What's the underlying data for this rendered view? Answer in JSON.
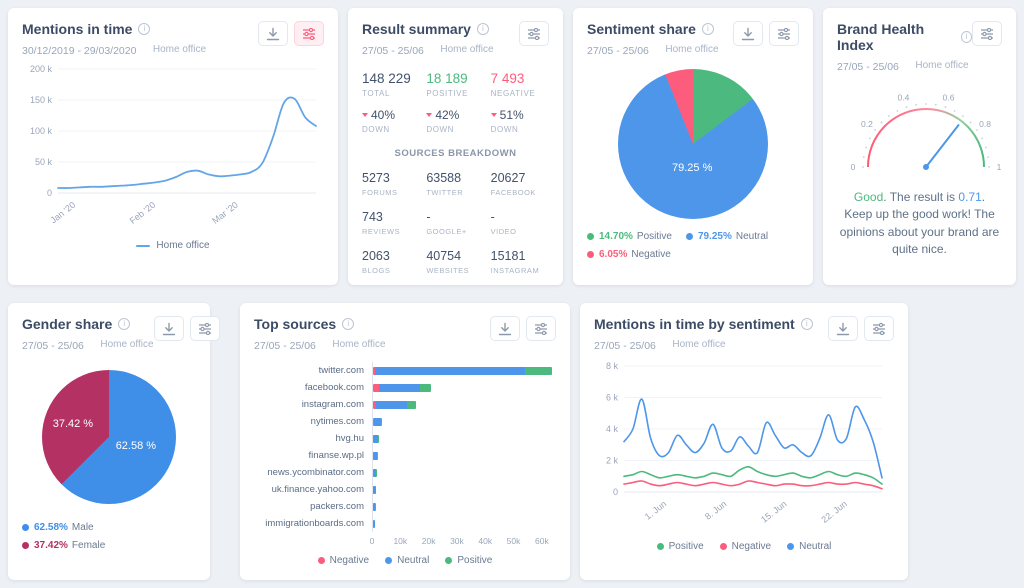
{
  "colors": {
    "positive": "#4cb97f",
    "negative": "#fd5d7c",
    "neutral": "#4d96e9",
    "male": "#3f8ee8",
    "female": "#b43163",
    "line": "#64a5e8",
    "dark": "#42526b"
  },
  "cards": {
    "mentions": {
      "title": "Mentions in time",
      "date_range": "30/12/2019 - 29/03/2020",
      "project": "Home office",
      "legend_label": "Home office",
      "chart_data": {
        "type": "line",
        "ymax": 200,
        "y_ticks": [
          "200 k",
          "150 k",
          "100 k",
          "50 k",
          "0"
        ],
        "x_ticks": [
          {
            "pos": 0.07,
            "label": "Jan '20"
          },
          {
            "pos": 0.38,
            "label": "Feb '20"
          },
          {
            "pos": 0.7,
            "label": "Mar '20"
          }
        ],
        "series": [
          {
            "name": "Home office",
            "color": "#64a5e8",
            "values": [
              8,
              8,
              9,
              10,
              10,
              11,
              12,
              13,
              15,
              17,
              20,
              26,
              34,
              36,
              30,
              27,
              28,
              30,
              34,
              48,
              90,
              145,
              152,
              122,
              108
            ]
          }
        ]
      }
    },
    "summary": {
      "title": "Result summary",
      "date_range": "27/05 - 25/06",
      "project": "Home office",
      "stats": [
        {
          "value": "148 229",
          "label": "TOTAL"
        },
        {
          "value": "18 189",
          "label": "POSITIVE"
        },
        {
          "value": "7 493",
          "label": "NEGATIVE"
        }
      ],
      "trends": [
        {
          "value": "40%",
          "label": "DOWN"
        },
        {
          "value": "42%",
          "label": "DOWN"
        },
        {
          "value": "51%",
          "label": "DOWN"
        }
      ],
      "breakdown_title": "SOURCES BREAKDOWN",
      "breakdown": [
        {
          "value": "5273",
          "label": "FORUMS"
        },
        {
          "value": "63588",
          "label": "TWITTER"
        },
        {
          "value": "20627",
          "label": "FACEBOOK"
        },
        {
          "value": "743",
          "label": "REVIEWS"
        },
        {
          "value": "-",
          "label": "GOOGLE+"
        },
        {
          "value": "-",
          "label": "VIDEO"
        },
        {
          "value": "2063",
          "label": "BLOGS"
        },
        {
          "value": "40754",
          "label": "WEBSITES"
        },
        {
          "value": "15181",
          "label": "INSTAGRAM"
        }
      ]
    },
    "sentiment": {
      "title": "Sentiment share",
      "date_range": "27/05 - 25/06",
      "project": "Home office",
      "chart_data": {
        "type": "pie",
        "slices": [
          {
            "label": "Positive",
            "pct": 14.7,
            "color": "#4cb97f"
          },
          {
            "label": "Neutral",
            "pct": 79.25,
            "color": "#4d96e9"
          },
          {
            "label": "Negative",
            "pct": 6.05,
            "color": "#fd5d7c"
          }
        ],
        "inner_label": "79.25 %"
      },
      "legend": [
        {
          "pct": "14.70%",
          "label": "Positive",
          "color": "#4cb97f"
        },
        {
          "pct": "79.25%",
          "label": "Neutral",
          "color": "#4d96e9"
        },
        {
          "pct": "6.05%",
          "label": "Negative",
          "color": "#fd5d7c"
        }
      ]
    },
    "health": {
      "title": "Brand Health Index",
      "date_range": "27/05 - 25/06",
      "project": "Home office",
      "chart_data": {
        "type": "gauge",
        "value": 0.71,
        "min": 0,
        "max": 1,
        "tick_labels": [
          "0",
          "0.2",
          "0.4",
          "0.6",
          "0.8",
          "1"
        ]
      },
      "verdict": "Good",
      "text_mid": ". The result is ",
      "value_text": "0.71",
      "text_rest": ". Keep up the good work! The opinions about your brand are quite nice."
    },
    "gender": {
      "title": "Gender share",
      "date_range": "27/05 - 25/06",
      "project": "Home office",
      "chart_data": {
        "type": "pie",
        "slices": [
          {
            "label": "Male",
            "pct": 62.58,
            "color": "#3f8ee8"
          },
          {
            "label": "Female",
            "pct": 37.42,
            "color": "#b43163"
          }
        ],
        "inner_labels": [
          "62.58 %",
          "37.42 %"
        ]
      },
      "legend": [
        {
          "pct": "62.58%",
          "label": "Male",
          "color": "#3f8ee8"
        },
        {
          "pct": "37.42%",
          "label": "Female",
          "color": "#b43163"
        }
      ]
    },
    "sources": {
      "title": "Top sources",
      "date_range": "27/05 - 25/06",
      "project": "Home office",
      "chart_data": {
        "type": "stacked_bar_h",
        "xmax": 65000,
        "x_ticks": [
          "0",
          "10k",
          "20k",
          "30k",
          "40k",
          "50k",
          "60k"
        ],
        "categories": [
          "twitter.com",
          "facebook.com",
          "instagram.com",
          "nytimes.com",
          "hvg.hu",
          "finanse.wp.pl",
          "news.ycombinator.com",
          "uk.finance.yahoo.com",
          "packers.com",
          "immigrationboards.com"
        ],
        "series": [
          {
            "name": "Negative",
            "color": "#fd5d7c",
            "values": [
              800,
              2000,
              1000,
              200,
              150,
              100,
              100,
              80,
              60,
              50
            ]
          },
          {
            "name": "Neutral",
            "color": "#4d96e9",
            "values": [
              53300,
              14600,
              11000,
              2600,
              1800,
              1400,
              1100,
              950,
              820,
              720
            ]
          },
          {
            "name": "Positive",
            "color": "#4cb97f",
            "values": [
              9500,
              4000,
              3200,
              300,
              250,
              200,
              150,
              120,
              100,
              90
            ]
          }
        ]
      },
      "legend": [
        {
          "label": "Negative",
          "color": "#fd5d7c"
        },
        {
          "label": "Neutral",
          "color": "#4d96e9"
        },
        {
          "label": "Positive",
          "color": "#4cb97f"
        }
      ]
    },
    "by_sentiment": {
      "title": "Mentions in time by sentiment",
      "date_range": "27/05 - 25/06",
      "project": "Home office",
      "chart_data": {
        "type": "line",
        "ymax": 8,
        "y_ticks": [
          "8 k",
          "6 k",
          "4 k",
          "2 k",
          "0"
        ],
        "x_ticks": [
          {
            "pos": 0.167,
            "label": "1. Jun"
          },
          {
            "pos": 0.4,
            "label": "8. Jun"
          },
          {
            "pos": 0.633,
            "label": "15. Jun"
          },
          {
            "pos": 0.867,
            "label": "22. Jun"
          }
        ],
        "series": [
          {
            "name": "Neutral",
            "color": "#4d96e9",
            "values": [
              3.2,
              4.0,
              5.9,
              3.4,
              2.3,
              2.5,
              3.6,
              3.0,
              2.5,
              3.1,
              4.3,
              2.8,
              2.6,
              3.5,
              2.9,
              2.5,
              4.4,
              3.6,
              2.8,
              3.0,
              2.5,
              2.3,
              3.4,
              4.9,
              3.3,
              3.4,
              5.4,
              4.6,
              3.2,
              0.9
            ]
          },
          {
            "name": "Positive",
            "color": "#4cb97f",
            "values": [
              1.0,
              1.1,
              1.3,
              1.1,
              0.9,
              1.0,
              1.1,
              1.0,
              0.9,
              1.0,
              1.2,
              1.1,
              1.0,
              1.4,
              1.6,
              1.3,
              1.1,
              1.0,
              1.1,
              1.2,
              1.0,
              0.9,
              1.1,
              1.3,
              1.1,
              1.0,
              1.2,
              1.1,
              0.9,
              0.5
            ]
          },
          {
            "name": "Negative",
            "color": "#fd5d7c",
            "values": [
              0.5,
              0.6,
              0.7,
              0.5,
              0.4,
              0.5,
              0.6,
              0.5,
              0.4,
              0.5,
              0.6,
              0.5,
              0.4,
              0.5,
              0.7,
              0.6,
              0.5,
              0.4,
              0.5,
              0.5,
              0.4,
              0.4,
              0.5,
              0.6,
              0.5,
              0.5,
              0.6,
              0.5,
              0.4,
              0.2
            ]
          }
        ]
      },
      "legend": [
        {
          "label": "Positive",
          "color": "#4cb97f"
        },
        {
          "label": "Negative",
          "color": "#fd5d7c"
        },
        {
          "label": "Neutral",
          "color": "#4d96e9"
        }
      ]
    }
  }
}
